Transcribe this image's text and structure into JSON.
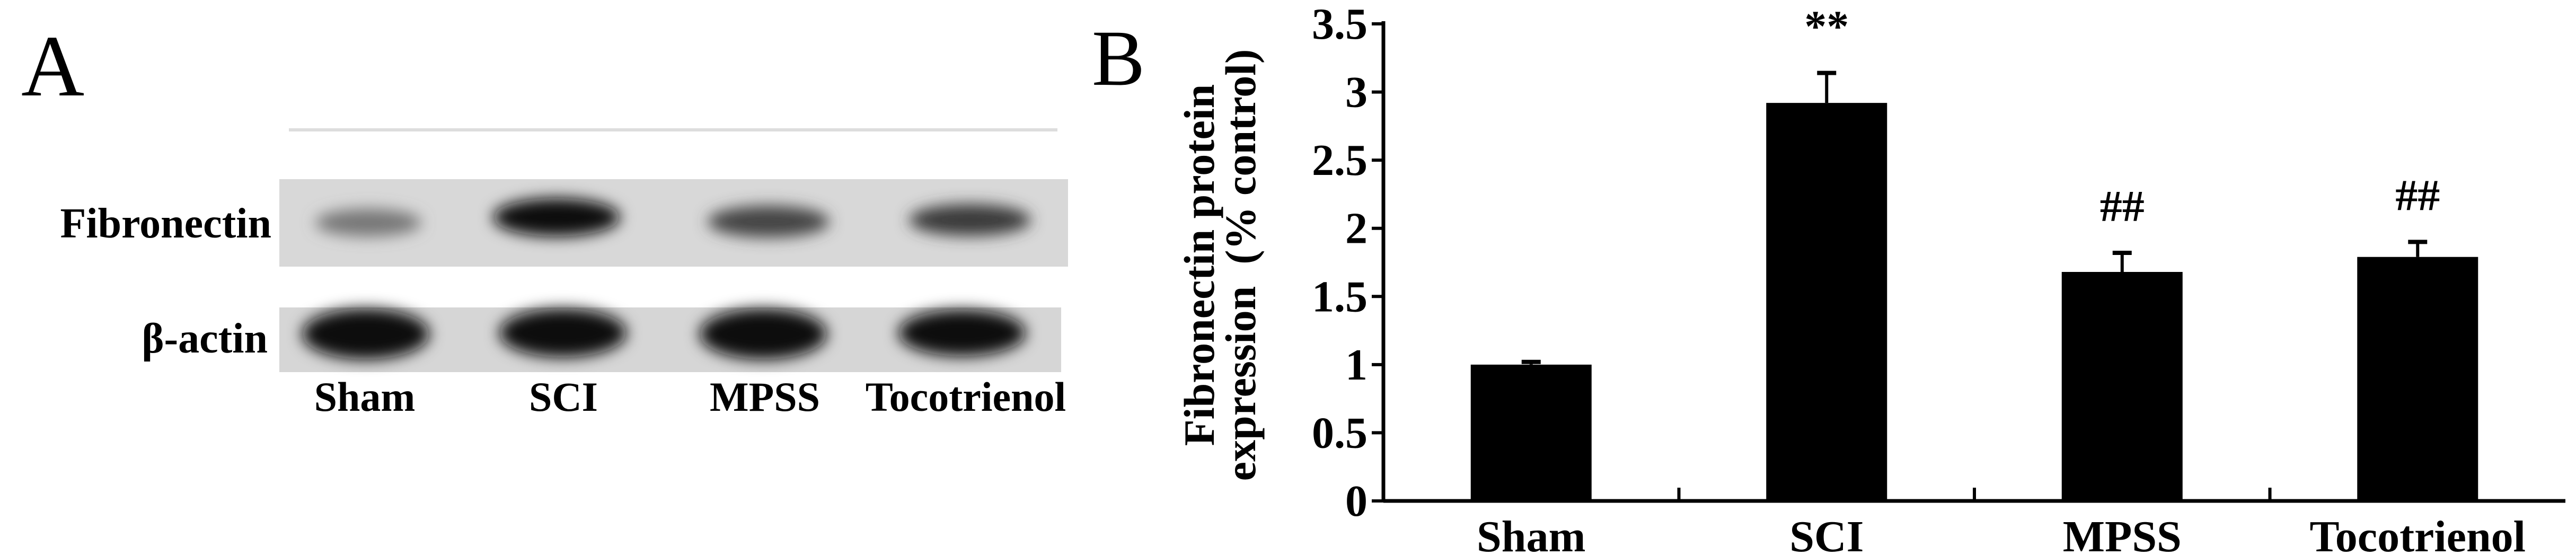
{
  "panel_a": {
    "label": "A",
    "row_labels": [
      "Fibronectin",
      "β-actin"
    ],
    "lane_labels": [
      "Sham",
      "SCI",
      "MPSS",
      "Tocotrienol"
    ]
  },
  "panel_b": {
    "label": "B"
  },
  "chart_data": {
    "type": "bar",
    "categories": [
      "Sham",
      "SCI",
      "MPSS",
      "Tocotrienol"
    ],
    "values": [
      1.0,
      2.92,
      1.68,
      1.79
    ],
    "errors": [
      0.02,
      0.22,
      0.14,
      0.11
    ],
    "annotations": [
      "",
      "**",
      "##",
      "##"
    ],
    "title": "",
    "xlabel": "",
    "ylabel_lines": [
      "Fibronectin protein",
      "expression  (% control)"
    ],
    "ylim": [
      0,
      3.5
    ],
    "yticks": [
      "0",
      "0.5",
      "1",
      "1.5",
      "2",
      "2.5",
      "3",
      "3.5"
    ],
    "grid": false,
    "bar_color": "#000000"
  }
}
